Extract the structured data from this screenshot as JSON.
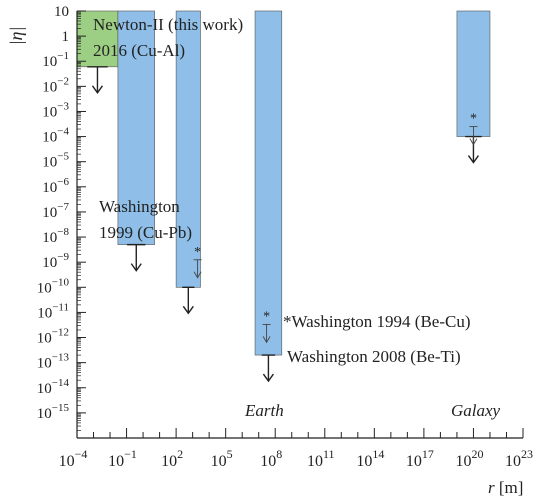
{
  "chart_data": {
    "type": "bar",
    "title": "",
    "xlabel_var": "r",
    "xlabel_unit": " [m]",
    "ylabel": "|η|",
    "x_scale": "log10",
    "y_scale": "log10",
    "xlim_exp": [
      -4,
      23
    ],
    "ylim_exp": [
      -16,
      1
    ],
    "x_tick_exps": [
      -4,
      -1,
      2,
      5,
      8,
      11,
      14,
      17,
      20,
      23
    ],
    "y_tick_exps": [
      1,
      0,
      -1,
      -2,
      -3,
      -4,
      -5,
      -6,
      -7,
      -8,
      -9,
      -10,
      -11,
      -12,
      -13,
      -14,
      -15
    ],
    "series": [
      {
        "label": "Newton-II (this work)",
        "x_range": [
          0.0001,
          0.03
        ],
        "eta_bound": 0.06,
        "color": "#9ccf83"
      },
      {
        "label": "2016 (Cu-Al)",
        "x_range": [
          0.03,
          5
        ],
        "eta_bound": 5e-09,
        "color": "#8fbfe8"
      },
      {
        "label": "Washington 1999 (Cu-Pb)",
        "x_range": [
          100,
          3000
        ],
        "eta_bound": 1e-10,
        "color": "#8fbfe8"
      },
      {
        "label": "Washington 2008 (Be-Ti)",
        "x_range": [
          6000000,
          250000000
        ],
        "eta_bound": 2e-13,
        "color": "#8fbfe8"
      },
      {
        "label": "Galaxy",
        "x_range": [
          1e+19,
          1e+21
        ],
        "eta_bound": 0.0001,
        "color": "#8fbfe8"
      }
    ],
    "star_markers": [
      {
        "x": 2000,
        "eta_bound": 1.5e-09
      },
      {
        "x": 30000000,
        "eta_bound": 4e-12
      },
      {
        "x": 1e+20,
        "eta_bound": 0.0003
      }
    ],
    "annotations": [
      {
        "text": "Newton-II (this work)"
      },
      {
        "text": "2016 (Cu-Al)"
      },
      {
        "text": "Washington"
      },
      {
        "text": "1999 (Cu-Pb)"
      },
      {
        "text": "*Washington 1994 (Be-Cu)"
      },
      {
        "text": "Washington 2008 (Be-Ti)"
      },
      {
        "text": "Earth",
        "italic": true
      },
      {
        "text": "Galaxy",
        "italic": true
      }
    ]
  }
}
